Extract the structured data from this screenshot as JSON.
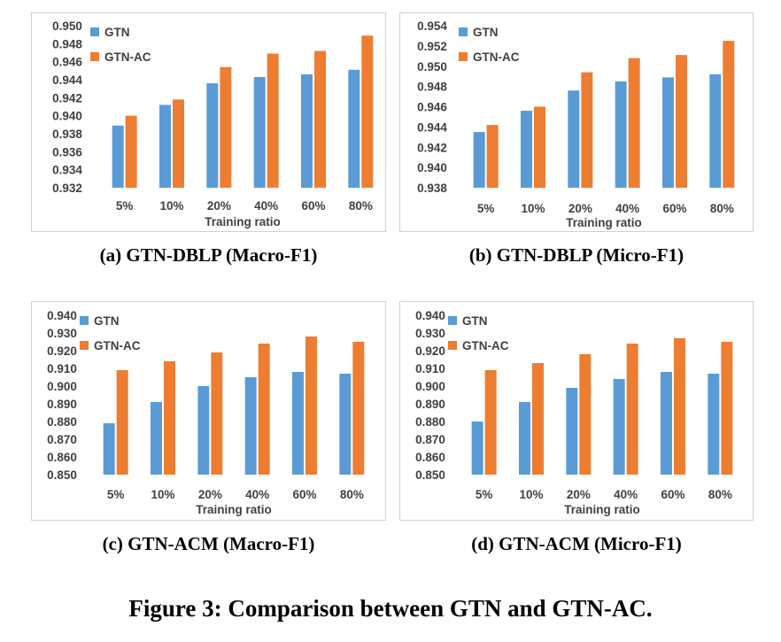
{
  "colors": {
    "gtn": "#5B9BD5",
    "gtn_ac": "#ED7D31",
    "tick_text": "#404040"
  },
  "figure_caption": "Figure 3: Comparison between GTN and GTN-AC.",
  "chart_data": [
    {
      "type": "bar",
      "caption": "(a) GTN-DBLP (Macro-F1)",
      "categories": [
        "5%",
        "10%",
        "20%",
        "40%",
        "60%",
        "80%"
      ],
      "xlabel": "Training ratio",
      "ylabel": "",
      "ylim": [
        0.932,
        0.95
      ],
      "yticks": [
        "0.950",
        "0.948",
        "0.946",
        "0.944",
        "0.942",
        "0.940",
        "0.938",
        "0.936",
        "0.934",
        "0.932"
      ],
      "legend": [
        "GTN",
        "GTN-AC"
      ],
      "series": [
        {
          "name": "GTN",
          "values": [
            0.9389,
            0.9412,
            0.9436,
            0.9443,
            0.9446,
            0.9451
          ]
        },
        {
          "name": "GTN-AC",
          "values": [
            0.94,
            0.9418,
            0.9454,
            0.9469,
            0.9472,
            0.9489
          ]
        }
      ]
    },
    {
      "type": "bar",
      "caption": "(b) GTN-DBLP (Micro-F1)",
      "categories": [
        "5%",
        "10%",
        "20%",
        "40%",
        "60%",
        "80%"
      ],
      "xlabel": "Training ratio",
      "ylabel": "",
      "ylim": [
        0.938,
        0.954
      ],
      "yticks": [
        "0.954",
        "0.952",
        "0.950",
        "0.948",
        "0.946",
        "0.944",
        "0.942",
        "0.940",
        "0.938"
      ],
      "legend": [
        "GTN",
        "GTN-AC"
      ],
      "series": [
        {
          "name": "GTN",
          "values": [
            0.9435,
            0.9456,
            0.9476,
            0.9485,
            0.9489,
            0.9492
          ]
        },
        {
          "name": "GTN-AC",
          "values": [
            0.9442,
            0.946,
            0.9494,
            0.9508,
            0.9511,
            0.9525
          ]
        }
      ]
    },
    {
      "type": "bar",
      "caption": "(c) GTN-ACM (Macro-F1)",
      "categories": [
        "5%",
        "10%",
        "20%",
        "40%",
        "60%",
        "80%"
      ],
      "xlabel": "Training ratio",
      "ylabel": "",
      "ylim": [
        0.85,
        0.94
      ],
      "yticks": [
        "0.940",
        "0.930",
        "0.920",
        "0.910",
        "0.900",
        "0.890",
        "0.880",
        "0.870",
        "0.860",
        "0.850"
      ],
      "legend": [
        "GTN",
        "GTN-AC"
      ],
      "series": [
        {
          "name": "GTN",
          "values": [
            0.879,
            0.891,
            0.9,
            0.905,
            0.908,
            0.907
          ]
        },
        {
          "name": "GTN-AC",
          "values": [
            0.909,
            0.914,
            0.919,
            0.924,
            0.928,
            0.925
          ]
        }
      ]
    },
    {
      "type": "bar",
      "caption": "(d) GTN-ACM (Micro-F1)",
      "categories": [
        "5%",
        "10%",
        "20%",
        "40%",
        "60%",
        "80%"
      ],
      "xlabel": "Training ratio",
      "ylabel": "",
      "ylim": [
        0.85,
        0.94
      ],
      "yticks": [
        "0.940",
        "0.930",
        "0.920",
        "0.910",
        "0.900",
        "0.890",
        "0.880",
        "0.870",
        "0.860",
        "0.850"
      ],
      "legend": [
        "GTN",
        "GTN-AC"
      ],
      "series": [
        {
          "name": "GTN",
          "values": [
            0.88,
            0.891,
            0.899,
            0.904,
            0.908,
            0.907
          ]
        },
        {
          "name": "GTN-AC",
          "values": [
            0.909,
            0.913,
            0.918,
            0.924,
            0.927,
            0.925
          ]
        }
      ]
    }
  ]
}
